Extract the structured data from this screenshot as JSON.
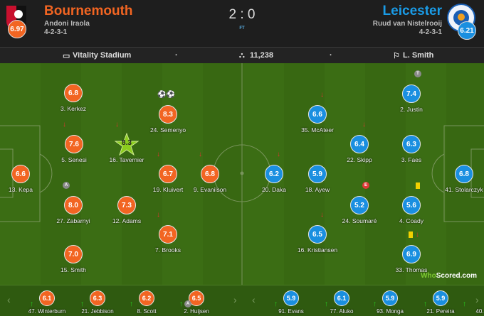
{
  "header": {
    "home": {
      "name": "Bournemouth",
      "manager": "Andoni Iraola",
      "formation": "4-2-3-1",
      "rating": "6.97",
      "color": "#f26522"
    },
    "away": {
      "name": "Leicester",
      "manager": "Ruud van Nistelrooij",
      "formation": "4-2-3-1",
      "rating": "6.21",
      "color": "#1a9be6"
    },
    "score": "2 : 0",
    "status": "FT"
  },
  "info": {
    "stadium": "Vitality Stadium",
    "sep1": "·",
    "attendance": "11,238",
    "sep2": "·",
    "referee": "L. Smith",
    "icons": [
      "stadium-icon",
      "crowd-icon",
      "whistle-icon"
    ]
  },
  "home_players": [
    {
      "name": "3. Kerkez",
      "rating": "6.8"
    },
    {
      "name": "24. Semenyo",
      "rating": "8.3",
      "goals": 2
    },
    {
      "name": "5. Senesi",
      "rating": "7.6",
      "subbed_off": true
    },
    {
      "name": "16. Tavernier",
      "rating": "8.3",
      "man_of_match": true,
      "subbed_off": true
    },
    {
      "name": "13. Kepa",
      "rating": "6.6"
    },
    {
      "name": "19. Kluivert",
      "rating": "6.7",
      "subbed_off": true
    },
    {
      "name": "9. Evanilson",
      "rating": "6.8",
      "subbed_off": true
    },
    {
      "name": "27. Zabarnyi",
      "rating": "8.0",
      "badge": "A"
    },
    {
      "name": "12. Adams",
      "rating": "7.3"
    },
    {
      "name": "7. Brooks",
      "rating": "7.1",
      "subbed_off": true
    },
    {
      "name": "15. Smith",
      "rating": "7.0"
    }
  ],
  "away_players": [
    {
      "name": "20. Daka",
      "rating": "6.2",
      "subbed_off": true
    },
    {
      "name": "18. Ayew",
      "rating": "5.9"
    },
    {
      "name": "35. McAteer",
      "rating": "6.6",
      "subbed_off": true
    },
    {
      "name": "22. Skipp",
      "rating": "6.4",
      "subbed_off": true
    },
    {
      "name": "2. Justin",
      "rating": "7.4",
      "badge": "T"
    },
    {
      "name": "3. Faes",
      "rating": "6.3"
    },
    {
      "name": "41. Stolarczyk",
      "rating": "6.8"
    },
    {
      "name": "24. Soumaré",
      "rating": "5.2",
      "badge": "E"
    },
    {
      "name": "4. Coady",
      "rating": "5.6",
      "yellow_card": true
    },
    {
      "name": "16. Kristiansen",
      "rating": "6.5",
      "subbed_off": true
    },
    {
      "name": "33. Thomas",
      "rating": "6.9",
      "yellow_card": true,
      "subbed_off": true
    }
  ],
  "home_bench": [
    {
      "name": "47. Winterburn",
      "rating": "6.1"
    },
    {
      "name": "21. Jebbison",
      "rating": "6.3"
    },
    {
      "name": "8. Scott",
      "rating": "6.2"
    },
    {
      "name": "2. Huijsen",
      "rating": "6.5",
      "badge": "A"
    }
  ],
  "away_bench": [
    {
      "name": "91. Evans",
      "rating": "5.9"
    },
    {
      "name": "77. Aluko",
      "rating": "6.1"
    },
    {
      "name": "93. Monga",
      "rating": "5.9"
    },
    {
      "name": "21. Pereira",
      "rating": "5.9"
    },
    {
      "name": "40.",
      "rating": ""
    }
  ],
  "watermark": {
    "brand": "WhoScored",
    ".com": ".com"
  }
}
